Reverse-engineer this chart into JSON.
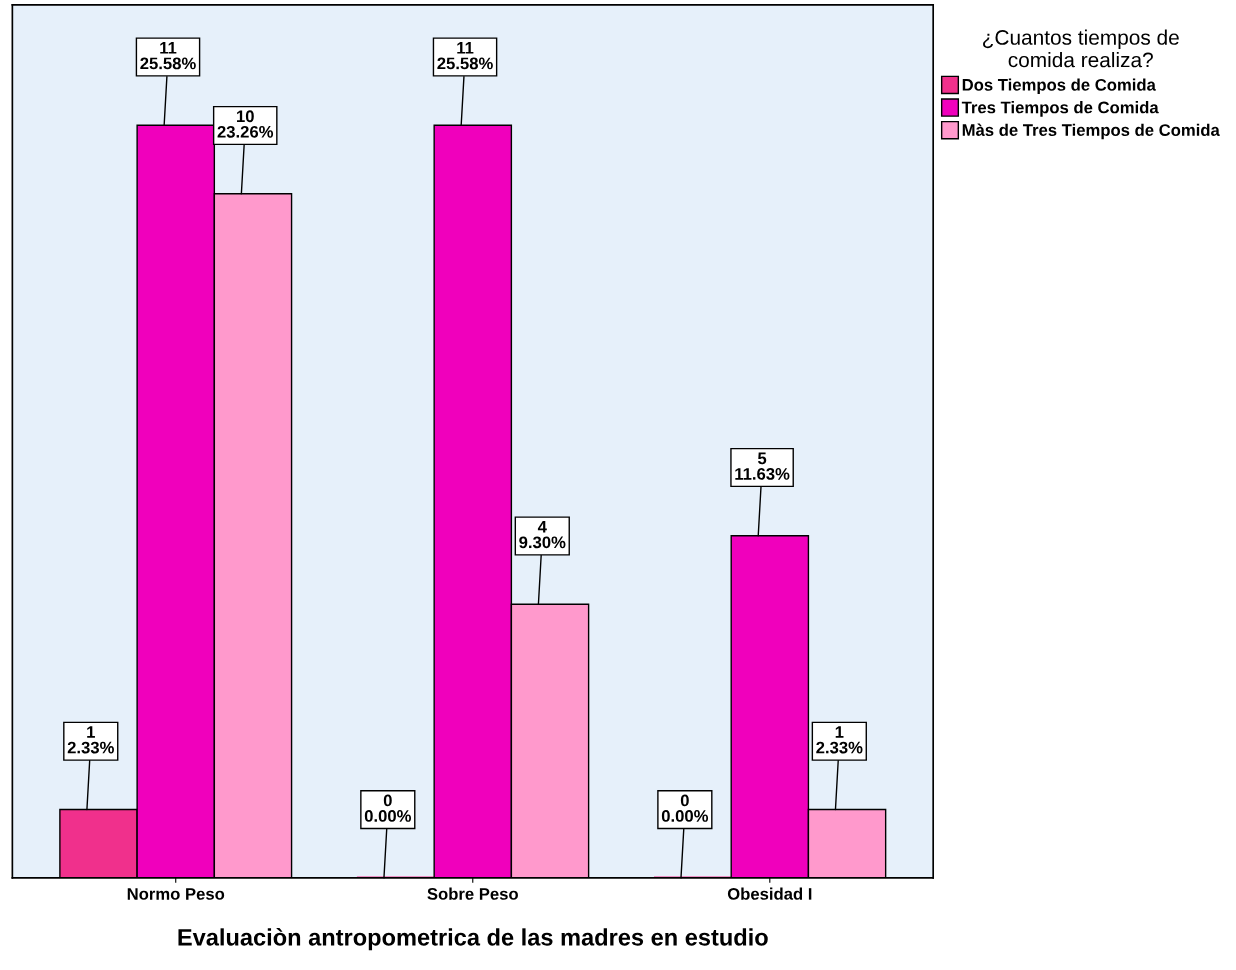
{
  "chart_data": {
    "type": "bar",
    "xlabel": "Evaluaciòn antropometrica de las madres en estudio",
    "legend_title": "¿Cuantos tiempos de\ncomida realiza?",
    "legend": "top right",
    "categories": [
      "Normo Peso",
      "Sobre Peso",
      "Obesidad I"
    ],
    "series": [
      {
        "name": "Dos Tiempos de Comida",
        "color": "#f0308c",
        "values": [
          1,
          0,
          0
        ],
        "value_labels": [
          "1\n2.33%",
          "0\n0.00%",
          "0\n0.00%"
        ]
      },
      {
        "name": "Tres Tiempos de Comida",
        "color": "#f000bc",
        "values": [
          11,
          11,
          5
        ],
        "value_labels": [
          "11\n25.58%",
          "11\n25.58%",
          "5\n11.63%"
        ]
      },
      {
        "name": "Màs de Tres Tiempos de Comida",
        "color": "#ff99cc",
        "values": [
          10,
          4,
          1
        ],
        "value_labels": [
          "10\n23.26%",
          "4\n9.30%",
          "1\n2.33%"
        ]
      }
    ],
    "relative": false,
    "grid": false
  }
}
